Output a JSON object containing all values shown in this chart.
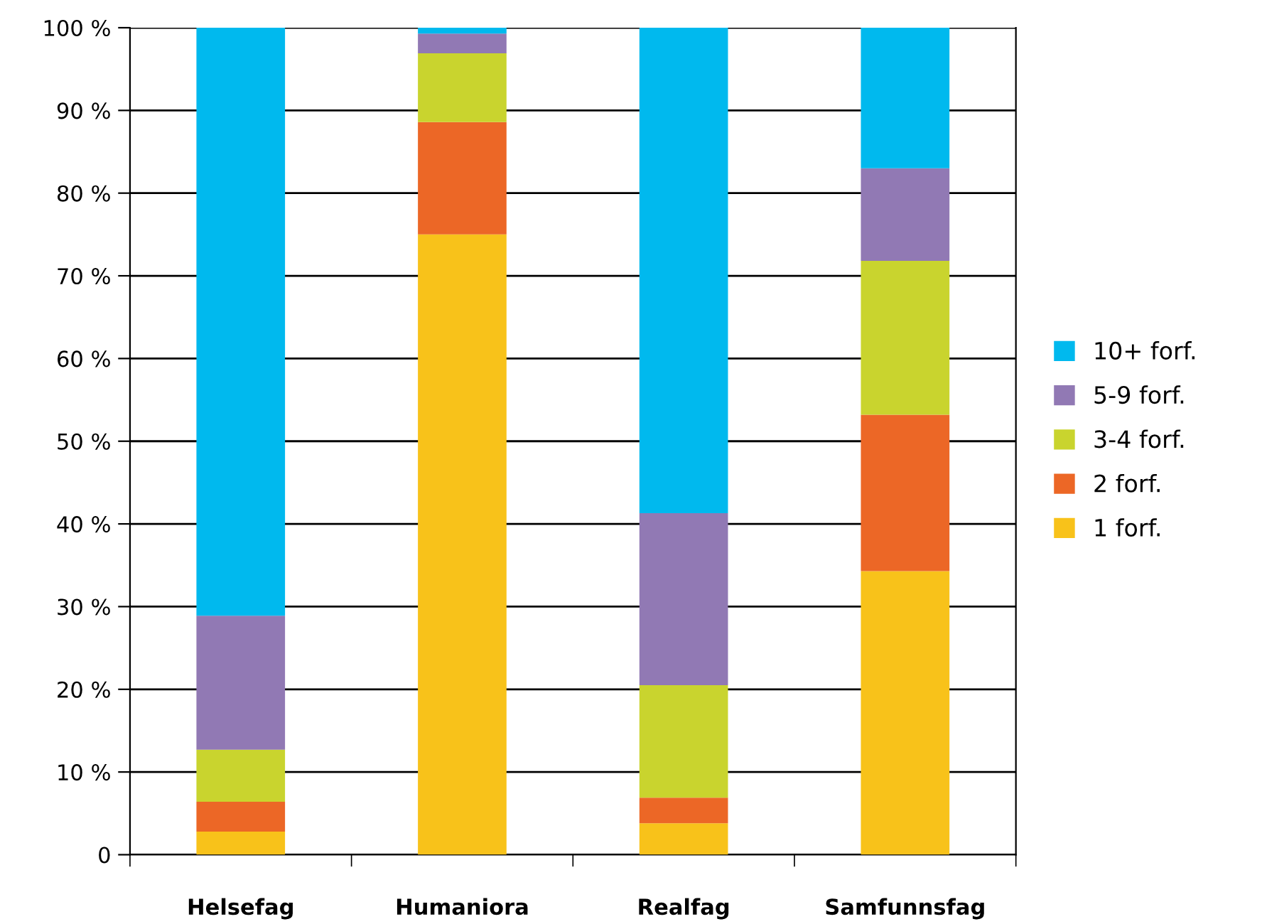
{
  "chart_data": {
    "type": "bar",
    "stacked": true,
    "categories": [
      "Helsefag",
      "Humaniora",
      "Realfag",
      "Samfunnsfag"
    ],
    "series": [
      {
        "name": "1 forf.",
        "color": "#f8c21a",
        "values": [
          2.8,
          75.0,
          3.8,
          34.3
        ]
      },
      {
        "name": "2 forf.",
        "color": "#ec6726",
        "values": [
          3.6,
          13.6,
          3.1,
          18.9
        ]
      },
      {
        "name": "3-4 forf.",
        "color": "#c9d42e",
        "values": [
          6.3,
          8.3,
          13.6,
          18.6
        ]
      },
      {
        "name": "5-9 forf.",
        "color": "#9179b4",
        "values": [
          16.2,
          2.4,
          20.8,
          11.2
        ]
      },
      {
        "name": "10+ forf.",
        "color": "#00b9ee",
        "values": [
          71.1,
          0.7,
          58.7,
          17.0
        ]
      }
    ],
    "ylim": [
      0,
      100
    ],
    "yticks": [
      0,
      {
        "value": 10,
        "label": "10 %"
      },
      {
        "value": 20,
        "label": "20 %"
      },
      {
        "value": 30,
        "label": "30 %"
      },
      {
        "value": 40,
        "label": "40 %"
      },
      {
        "value": 50,
        "label": "50 %"
      },
      {
        "value": 60,
        "label": "60 %"
      },
      {
        "value": 70,
        "label": "70 %"
      },
      {
        "value": 80,
        "label": "80 %"
      },
      {
        "value": 90,
        "label": "90 %"
      },
      {
        "value": 100,
        "label": "100 %"
      }
    ],
    "grid": "y",
    "legend": "right"
  }
}
